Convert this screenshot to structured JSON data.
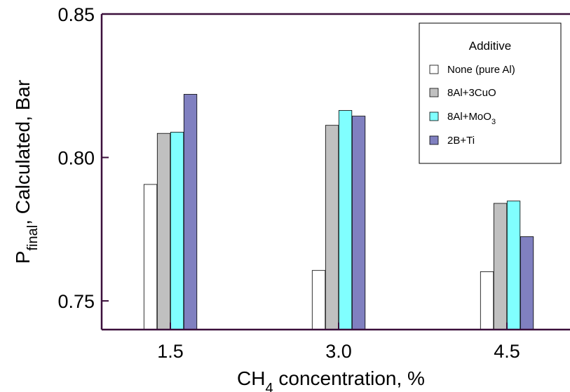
{
  "chart_data": {
    "type": "bar",
    "title": "",
    "xlabel": {
      "main": "CH",
      "sub": "4",
      "rest": " concentration, %"
    },
    "ylabel": {
      "main": "P",
      "sub": "final",
      "rest": ", Calculated, Bar"
    },
    "categories": [
      "1.5",
      "3.0",
      "4.5"
    ],
    "ylim": [
      0.74,
      0.85
    ],
    "yticks": [
      0.75,
      0.8,
      0.85
    ],
    "ytick_labels": [
      "0.75",
      "0.80",
      "0.85"
    ],
    "grid": false,
    "legend": {
      "title": "Additive",
      "position": "top-right",
      "entries": [
        {
          "main": "None (pure Al)",
          "sub": "",
          "rest": ""
        },
        {
          "main": "8Al+3CuO",
          "sub": "",
          "rest": ""
        },
        {
          "main": "8Al+MoO",
          "sub": "3",
          "rest": ""
        },
        {
          "main": "2B+Ti",
          "sub": "",
          "rest": ""
        }
      ]
    },
    "series": [
      {
        "name": "None (pure Al)",
        "color": "#ffffff",
        "values": [
          0.7906,
          0.7606,
          0.7602
        ]
      },
      {
        "name": "8Al+3CuO",
        "color": "#c0c0c0",
        "values": [
          0.8084,
          0.8112,
          0.784
        ]
      },
      {
        "name": "8Al+MoO3",
        "color": "#80ffff",
        "values": [
          0.8088,
          0.8164,
          0.7848
        ]
      },
      {
        "name": "2B+Ti",
        "color": "#8080c0",
        "values": [
          0.822,
          0.8144,
          0.7724
        ]
      }
    ],
    "axis_color": "#3b0f3b"
  }
}
